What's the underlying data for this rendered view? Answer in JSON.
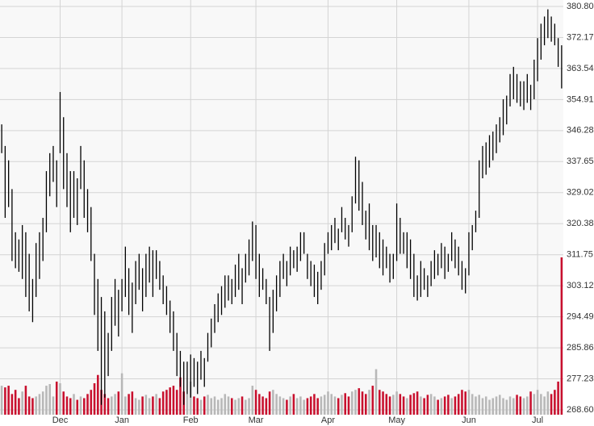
{
  "chart_data": {
    "type": "ohlc",
    "categories": [
      null,
      null,
      null,
      null,
      null,
      null,
      null,
      null,
      null,
      null,
      null,
      null,
      null,
      null,
      null,
      null,
      null,
      "Dec",
      null,
      null,
      null,
      null,
      null,
      null,
      null,
      null,
      null,
      null,
      null,
      null,
      null,
      null,
      null,
      null,
      null,
      "Jan",
      null,
      null,
      null,
      null,
      null,
      null,
      null,
      null,
      null,
      null,
      null,
      null,
      null,
      null,
      null,
      null,
      null,
      null,
      null,
      "Feb",
      null,
      null,
      null,
      null,
      null,
      null,
      null,
      null,
      null,
      null,
      null,
      null,
      null,
      null,
      null,
      null,
      null,
      null,
      "Mar",
      null,
      null,
      null,
      null,
      null,
      null,
      null,
      null,
      null,
      null,
      null,
      null,
      null,
      null,
      null,
      null,
      null,
      null,
      null,
      null,
      "Apr",
      null,
      null,
      null,
      null,
      null,
      null,
      null,
      null,
      null,
      null,
      null,
      null,
      null,
      null,
      null,
      null,
      null,
      null,
      null,
      "May",
      null,
      null,
      null,
      null,
      null,
      null,
      null,
      null,
      null,
      null,
      null,
      null,
      null,
      null,
      null,
      null,
      null,
      null,
      null,
      null,
      "Jun",
      null,
      null,
      null,
      null,
      null,
      null,
      null,
      null,
      null,
      null,
      null,
      null,
      null,
      null,
      null,
      null,
      null,
      null,
      null,
      "Jul",
      null,
      null,
      null,
      null,
      null,
      null,
      null
    ],
    "high": [
      348,
      342,
      338,
      330,
      318,
      316,
      320,
      318,
      312,
      305,
      315,
      318,
      322,
      335,
      340,
      342,
      338,
      357,
      350,
      340,
      335,
      335,
      333,
      342,
      338,
      330,
      325,
      312,
      305,
      300,
      296,
      290,
      300,
      305,
      302,
      305,
      314,
      308,
      304,
      310,
      312,
      308,
      312,
      314,
      313,
      313,
      310,
      306,
      303,
      299,
      296,
      290,
      285,
      282,
      282,
      284,
      283,
      282,
      285,
      283,
      290,
      294,
      298,
      301,
      303,
      306,
      306,
      305,
      309,
      312,
      308,
      312,
      316,
      321,
      320,
      312,
      308,
      305,
      300,
      302,
      306,
      310,
      312,
      310,
      314,
      313,
      314,
      318,
      318,
      312,
      310,
      309,
      307,
      310,
      315,
      318,
      320,
      322,
      319,
      325,
      322,
      320,
      328,
      339,
      338,
      332,
      324,
      326,
      320,
      320,
      318,
      316,
      314,
      312,
      312,
      326,
      322,
      318,
      318,
      316,
      312,
      306,
      310,
      308,
      306,
      310,
      313,
      312,
      315,
      314,
      312,
      318,
      316,
      314,
      310,
      308,
      318,
      320,
      324,
      338,
      342,
      343,
      345,
      346,
      348,
      350,
      355,
      356,
      362,
      364,
      362,
      360,
      360,
      362,
      359,
      366,
      372,
      376,
      378,
      380,
      378,
      376,
      372,
      370
    ],
    "low": [
      340,
      322,
      325,
      310,
      308,
      307,
      305,
      300,
      296,
      293,
      300,
      305,
      310,
      318,
      328,
      332,
      325,
      340,
      330,
      325,
      318,
      322,
      320,
      330,
      322,
      318,
      310,
      295,
      285,
      270,
      272,
      278,
      285,
      292,
      289,
      296,
      300,
      295,
      290,
      298,
      302,
      296,
      300,
      304,
      300,
      305,
      302,
      298,
      295,
      290,
      285,
      278,
      275,
      270,
      273,
      272,
      275,
      273,
      277,
      275,
      282,
      286,
      290,
      293,
      295,
      297,
      299,
      298,
      300,
      302,
      298,
      304,
      306,
      310,
      305,
      300,
      302,
      298,
      285,
      290,
      296,
      300,
      305,
      303,
      306,
      308,
      307,
      310,
      312,
      305,
      303,
      300,
      298,
      302,
      306,
      312,
      313,
      315,
      313,
      318,
      316,
      314,
      318,
      326,
      324,
      320,
      316,
      313,
      310,
      311,
      308,
      306,
      308,
      304,
      305,
      310,
      312,
      312,
      308,
      305,
      300,
      299,
      300,
      302,
      300,
      303,
      305,
      306,
      308,
      305,
      307,
      310,
      308,
      306,
      302,
      301,
      306,
      313,
      318,
      322,
      333,
      334,
      336,
      338,
      340,
      343,
      345,
      348,
      353,
      355,
      354,
      353,
      352,
      354,
      352,
      355,
      360,
      366,
      370,
      372,
      371,
      370,
      364,
      358
    ],
    "volume": [
      35,
      33,
      35,
      25,
      30,
      20,
      28,
      35,
      22,
      20,
      22,
      25,
      28,
      35,
      37,
      22,
      40,
      38,
      28,
      22,
      20,
      25,
      18,
      22,
      20,
      25,
      30,
      38,
      48,
      30,
      25,
      20,
      22,
      25,
      28,
      50,
      22,
      25,
      28,
      20,
      18,
      22,
      24,
      20,
      22,
      25,
      20,
      28,
      30,
      33,
      35,
      30,
      45,
      28,
      25,
      40,
      22,
      20,
      18,
      22,
      24,
      20,
      22,
      18,
      20,
      25,
      22,
      20,
      18,
      20,
      22,
      18,
      20,
      35,
      30,
      25,
      22,
      20,
      28,
      30,
      25,
      22,
      20,
      18,
      22,
      25,
      20,
      22,
      18,
      20,
      22,
      25,
      20,
      22,
      24,
      28,
      25,
      22,
      20,
      24,
      26,
      22,
      28,
      30,
      32,
      28,
      25,
      30,
      35,
      55,
      30,
      28,
      25,
      22,
      24,
      28,
      25,
      22,
      20,
      24,
      26,
      28,
      22,
      20,
      24,
      25,
      22,
      18,
      20,
      22,
      24,
      20,
      22,
      25,
      30,
      28,
      30,
      25,
      22,
      24,
      20,
      22,
      18,
      20,
      22,
      24,
      20,
      18,
      22,
      20,
      24,
      22,
      20,
      22,
      28,
      25,
      30,
      25,
      22,
      28,
      25,
      30,
      40,
      190
    ],
    "color": "#000000",
    "up_color": "#b8b8b8",
    "down_color": "#c8102e",
    "ylim": [
      268.6,
      380.8
    ],
    "yticks": [
      {
        "value": 380.8,
        "label": "380.80"
      },
      372.17,
      363.54,
      354.91,
      346.28,
      337.65,
      329.02,
      320.38,
      311.75,
      303.12,
      294.49,
      285.86,
      277.23,
      {
        "value": 268.6,
        "label": "268.60"
      }
    ],
    "grid": true
  }
}
